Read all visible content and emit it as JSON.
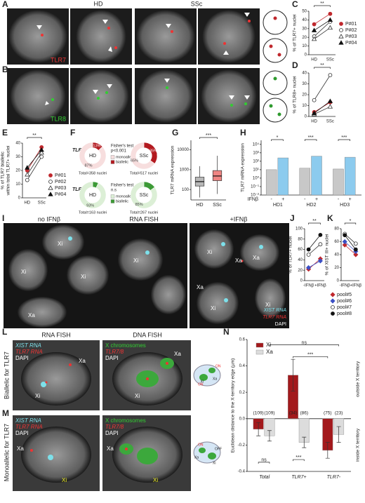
{
  "panel_labels": [
    "A",
    "B",
    "C",
    "D",
    "E",
    "F",
    "G",
    "H",
    "I",
    "J",
    "K",
    "L",
    "M",
    "N"
  ],
  "images": {
    "a": {
      "hd": "HD",
      "ssc": "SSc",
      "probe": "TLR7"
    },
    "b": {
      "probe": "TLR8"
    },
    "i": {
      "titles": [
        "no IFNβ",
        "RNA FISH",
        "+IFNβ"
      ],
      "markers": [
        "Xi",
        "Xi",
        "Xi",
        "Xi",
        "Xa",
        "Xi",
        "Xa",
        "Xa",
        "Xi",
        "Xa",
        "Xi"
      ],
      "legend": [
        "XIST RNA",
        "TLR7 RNA",
        "DAPI"
      ]
    },
    "l": {
      "row": "Biallelic for TLR7",
      "rna": "RNA FISH",
      "dna": "DNA FISH",
      "rna_legend": [
        "XIST RNA",
        "TLR7 RNA",
        "DAPI"
      ],
      "dna_legend": [
        "X chromosomes",
        "TLR7/8",
        "DAPI"
      ],
      "marks": [
        "Xa",
        "Xi",
        "Xa",
        "Xi"
      ],
      "cartoon": [
        "ON",
        "ON",
        "Xa",
        "Xi"
      ]
    },
    "m": {
      "row": "Monoallelic for TLR7",
      "rna_legend": [
        "XIST RNA",
        "TLR7 RNA",
        "DAPI"
      ],
      "dna_legend": [
        "X chromosomes",
        "TLR7/8",
        "DAPI"
      ],
      "marks": [
        "Xa",
        "Xi",
        "Xa",
        "Xi"
      ],
      "cartoon": [
        "ON",
        "OFF",
        "Xa",
        "Xi"
      ]
    }
  },
  "chart_data": [
    {
      "type": "paired",
      "ylabel": "% of TLR7+ nuclei",
      "categories": [
        "HD",
        "SSc"
      ],
      "ylim": [
        0,
        50
      ],
      "yticks": [
        0,
        10,
        20,
        30,
        40,
        50
      ],
      "annotation": "**",
      "series": [
        {
          "name": "P#01",
          "color": "#c0282d",
          "marker": "circle",
          "filled": true,
          "values": [
            35,
            47
          ]
        },
        {
          "name": "P#02",
          "color": "#333333",
          "marker": "circle",
          "filled": false,
          "values": [
            21,
            38
          ]
        },
        {
          "name": "P#03",
          "color": "#333333",
          "marker": "triangle",
          "filled": false,
          "values": [
            18,
            31
          ]
        },
        {
          "name": "P#04",
          "color": "#111111",
          "marker": "triangle",
          "filled": true,
          "values": [
            28,
            40
          ]
        }
      ]
    },
    {
      "type": "paired",
      "ylabel": "% of TLR8+ nuclei",
      "categories": [
        "HD",
        "SSc"
      ],
      "ylim": [
        0,
        40
      ],
      "yticks": [
        0,
        10,
        20,
        30,
        40
      ],
      "annotation": "**",
      "series": [
        {
          "color": "#c0282d",
          "marker": "circle",
          "filled": true,
          "values": [
            4,
            13
          ]
        },
        {
          "color": "#333333",
          "marker": "circle",
          "filled": false,
          "values": [
            15,
            38
          ]
        },
        {
          "color": "#333333",
          "marker": "triangle",
          "filled": false,
          "values": [
            2,
            9
          ]
        },
        {
          "color": "#111111",
          "marker": "triangle",
          "filled": true,
          "values": [
            3,
            14
          ]
        }
      ]
    },
    {
      "type": "paired",
      "ylabel": [
        "% of TLR7 biallelic",
        "within total TLR7+ nuclei"
      ],
      "categories": [
        "HD",
        "SSc"
      ],
      "ylim": [
        0,
        40
      ],
      "yticks": [
        0,
        10,
        20,
        30,
        40
      ],
      "annotation": "**",
      "series": [
        {
          "name": "P#01",
          "color": "#c0282d",
          "marker": "circle",
          "filled": true,
          "values": [
            20,
            37
          ]
        },
        {
          "name": "P#02",
          "color": "#333333",
          "marker": "circle",
          "filled": false,
          "values": [
            13,
            30
          ]
        },
        {
          "name": "P#03",
          "color": "#333333",
          "marker": "triangle",
          "filled": false,
          "values": [
            17,
            33
          ]
        },
        {
          "name": "P#04",
          "color": "#111111",
          "marker": "triangle",
          "filled": true,
          "values": [
            22,
            35
          ]
        }
      ]
    },
    {
      "type": "donut",
      "rows": [
        {
          "label": "TLR7",
          "colors": [
            "#f7dede",
            "#b3191f"
          ],
          "test": [
            "Fisher's test",
            "p<0.001"
          ],
          "legend": [
            "monoallelic",
            "biallelic"
          ],
          "panels": [
            {
              "center": "HD",
              "values": [
                87,
                13
              ],
              "value_labels": [
                "87%",
                "13%"
              ],
              "total": "Total=358 nuclei"
            },
            {
              "center": "SSc",
              "values": [
                65,
                35
              ],
              "value_labels": [
                "65%",
                "35%"
              ],
              "total": "Total=517 nuclei"
            }
          ]
        },
        {
          "label": "TLR8",
          "colors": [
            "#dcefd6",
            "#3c9a36"
          ],
          "test": [
            "Fisher's test",
            "n.s"
          ],
          "legend": [
            "monoallelic",
            "biallelic"
          ],
          "panels": [
            {
              "center": "HD",
              "values": [
                93,
                7
              ],
              "value_labels": [
                "93%",
                null
              ],
              "total": "Total=163 nuclei"
            },
            {
              "center": "SSc",
              "values": [
                85,
                15
              ],
              "value_labels": [
                "85%",
                null
              ],
              "total": "Total=267 nuclei"
            }
          ]
        }
      ]
    },
    {
      "type": "box",
      "ylabel": "TLR7 mRNA expression",
      "categories": [
        "HD",
        "SSc"
      ],
      "log": true,
      "ylim": [
        30,
        30000
      ],
      "yticks": [
        100,
        1000,
        10000
      ],
      "annotation": "***",
      "colors": [
        "#9a9a9a",
        "#e8514f"
      ],
      "boxes": [
        {
          "low": 40,
          "q1": 150,
          "median": 250,
          "q3": 420,
          "high": 1500
        },
        {
          "low": 60,
          "q1": 280,
          "median": 480,
          "q3": 900,
          "high": 5000
        }
      ]
    },
    {
      "type": "bar",
      "ylabel": "TLR7 mRNA expression",
      "categories": [
        "HD1",
        "HD2",
        "HD3"
      ],
      "x_label": "IFNβ",
      "log": true,
      "ylim": [
        0.01,
        30000
      ],
      "yticks": [
        {
          "value": 0.01,
          "label": "10⁻²"
        },
        {
          "value": 0.1,
          "label": "10⁻¹"
        },
        {
          "value": 1,
          "label": "10⁰"
        },
        {
          "value": 10,
          "label": "10¹"
        },
        {
          "value": 100,
          "label": "10²"
        },
        {
          "value": 1000,
          "label": "10³"
        },
        {
          "value": 10000,
          "label": "10⁴"
        }
      ],
      "annotations": [
        "*",
        "***",
        "***"
      ],
      "series": [
        {
          "name": "-",
          "color": "#c8c8c8",
          "values": [
            10,
            15,
            12
          ]
        },
        {
          "name": "+",
          "color": "#8ccbee",
          "values": [
            250,
            400,
            300
          ]
        }
      ]
    },
    {
      "type": "paired",
      "ylabel": "% of TLR7+ nuclei",
      "categories": [
        "-IFNβ",
        "+IFNβ"
      ],
      "ylim": [
        0,
        100
      ],
      "yticks": [
        0,
        20,
        40,
        60,
        80,
        100
      ],
      "annotation": "**",
      "series": [
        {
          "color": "#c0282d",
          "marker": "diamond",
          "filled": true,
          "values": [
            22,
            42
          ]
        },
        {
          "color": "#3a4fc4",
          "marker": "diamond",
          "filled": true,
          "values": [
            25,
            38
          ]
        },
        {
          "color": "#333333",
          "marker": "circle",
          "filled": false,
          "values": [
            50,
            70
          ]
        },
        {
          "color": "#111111",
          "marker": "circle",
          "filled": true,
          "values": [
            60,
            88
          ]
        }
      ]
    },
    {
      "type": "paired",
      "ylabel": "% of XIST III+ nuclei",
      "categories": [
        "-IFNβ",
        "+IFNβ"
      ],
      "ylim": [
        0,
        80
      ],
      "yticks": [
        0,
        20,
        40,
        60,
        80
      ],
      "annotation": "*",
      "series": [
        {
          "name": "pool#5",
          "color": "#c0282d",
          "marker": "diamond",
          "filled": true,
          "values": [
            55,
            40
          ]
        },
        {
          "name": "pool#6",
          "color": "#3a4fc4",
          "marker": "diamond",
          "filled": true,
          "values": [
            60,
            45
          ]
        },
        {
          "name": "pool#7",
          "color": "#333333",
          "marker": "circle",
          "filled": false,
          "values": [
            72,
            57
          ]
        },
        {
          "name": "pool#8",
          "color": "#111111",
          "marker": "circle",
          "filled": true,
          "values": [
            70,
            48
          ]
        }
      ]
    },
    {
      "type": "errbar",
      "ylabel": "Euclidean distance to the X-territory edge (µm)",
      "categories": [
        "Total",
        "TLR7+",
        "TLR7-"
      ],
      "ylim": [
        -0.4,
        0.6
      ],
      "yticks": [
        -0.4,
        -0.2,
        {
          "value": 0,
          "label": "0.0"
        },
        0.2,
        0.4,
        0.6
      ],
      "regions": [
        "outside X territory",
        "inside X territory"
      ],
      "annotations": [
        "ns",
        "***",
        "ns",
        "***"
      ],
      "series": [
        {
          "name": "Xi",
          "color": "#a3191c",
          "values": [
            -0.08,
            0.33,
            -0.24
          ],
          "errors": [
            0.05,
            0.12,
            0.06
          ],
          "count_labels": [
            "(109)",
            "(34)",
            "(75)"
          ]
        },
        {
          "name": "Xa",
          "color": "#dcdcdc",
          "values": [
            -0.13,
            -0.18,
            -0.12
          ],
          "errors": [
            0.04,
            0.04,
            0.06
          ],
          "count_labels": [
            "(109)",
            "(86)",
            "(23)"
          ]
        }
      ]
    }
  ]
}
